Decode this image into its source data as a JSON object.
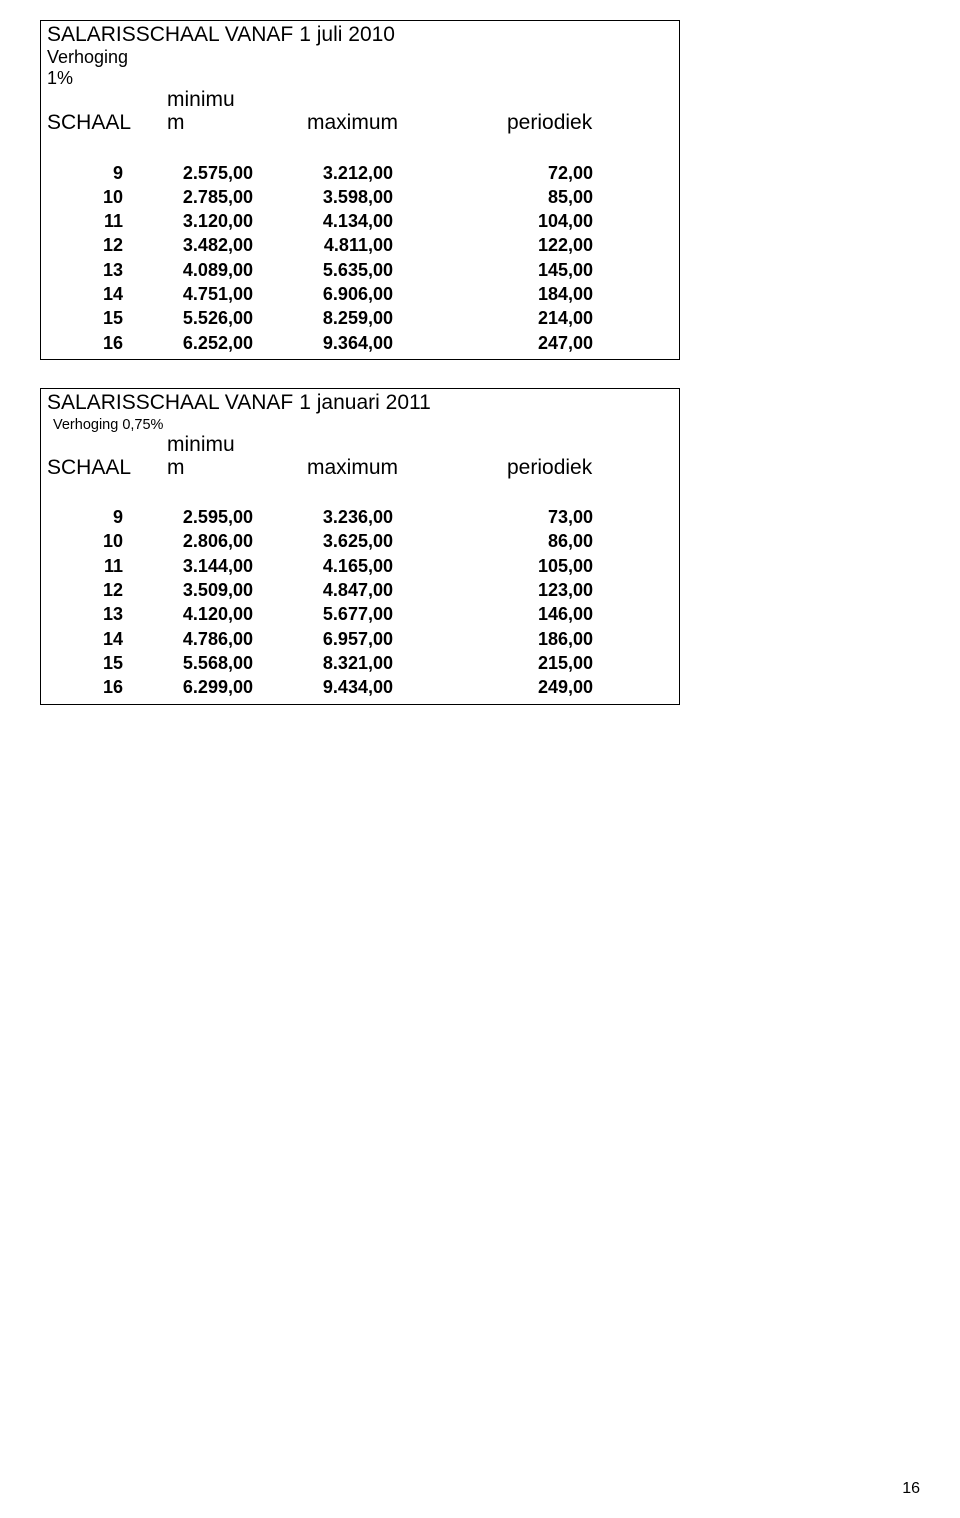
{
  "page_number": "16",
  "tables": [
    {
      "title_prefix": "SALARISSCHAAL VANAF",
      "title_date": "1 juli 2010",
      "verhoging_label": "Verhoging",
      "verhoging_percent": "1%",
      "verhoging_style": "large",
      "headers": {
        "schaal": "SCHAAL",
        "minimum_top": "minimu",
        "minimum_bottom": "m",
        "maximum": "maximum",
        "periodiek": "periodiek"
      },
      "rows": [
        {
          "schaal": "9",
          "min": "2.575,00",
          "max": "3.212,00",
          "per": "72,00"
        },
        {
          "schaal": "10",
          "min": "2.785,00",
          "max": "3.598,00",
          "per": "85,00"
        },
        {
          "schaal": "11",
          "min": "3.120,00",
          "max": "4.134,00",
          "per": "104,00"
        },
        {
          "schaal": "12",
          "min": "3.482,00",
          "max": "4.811,00",
          "per": "122,00"
        },
        {
          "schaal": "13",
          "min": "4.089,00",
          "max": "5.635,00",
          "per": "145,00"
        },
        {
          "schaal": "14",
          "min": "4.751,00",
          "max": "6.906,00",
          "per": "184,00"
        },
        {
          "schaal": "15",
          "min": "5.526,00",
          "max": "8.259,00",
          "per": "214,00"
        },
        {
          "schaal": "16",
          "min": "6.252,00",
          "max": "9.364,00",
          "per": "247,00"
        }
      ]
    },
    {
      "title_prefix": "SALARISSCHAAL VANAF",
      "title_date": "1 januari 2011",
      "verhoging_label": "Verhoging 0,75%",
      "verhoging_percent": "",
      "verhoging_style": "small",
      "headers": {
        "schaal": "SCHAAL",
        "minimum_top": "minimu",
        "minimum_bottom": "m",
        "maximum": "maximum",
        "periodiek": "periodiek"
      },
      "rows": [
        {
          "schaal": "9",
          "min": "2.595,00",
          "max": "3.236,00",
          "per": "73,00"
        },
        {
          "schaal": "10",
          "min": "2.806,00",
          "max": "3.625,00",
          "per": "86,00"
        },
        {
          "schaal": "11",
          "min": "3.144,00",
          "max": "4.165,00",
          "per": "105,00"
        },
        {
          "schaal": "12",
          "min": "3.509,00",
          "max": "4.847,00",
          "per": "123,00"
        },
        {
          "schaal": "13",
          "min": "4.120,00",
          "max": "5.677,00",
          "per": "146,00"
        },
        {
          "schaal": "14",
          "min": "4.786,00",
          "max": "6.957,00",
          "per": "186,00"
        },
        {
          "schaal": "15",
          "min": "5.568,00",
          "max": "8.321,00",
          "per": "215,00"
        },
        {
          "schaal": "16",
          "min": "6.299,00",
          "max": "9.434,00",
          "per": "249,00"
        }
      ]
    }
  ]
}
